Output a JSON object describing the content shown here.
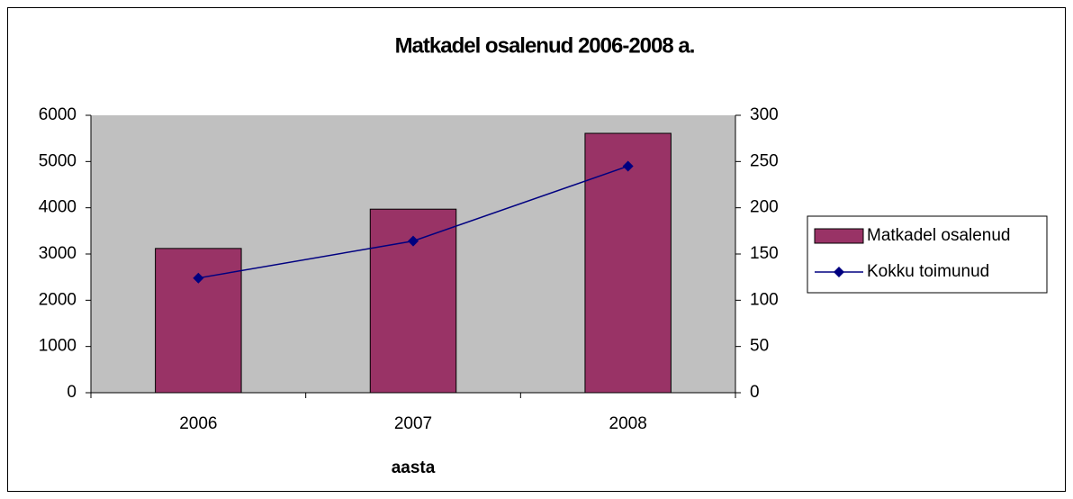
{
  "chart_data": {
    "type": "combo",
    "title": "Matkadel osalenud 2006-2008 a.",
    "x_label": "aasta",
    "categories": [
      "2006",
      "2007",
      "2008"
    ],
    "series": [
      {
        "name": "Matkadel osalenud",
        "type": "bar",
        "color": "#993366",
        "values": [
          3120,
          3970,
          5610
        ]
      },
      {
        "name": "Kokku toimunud",
        "type": "line",
        "color": "#000080",
        "axis": "y2",
        "values": [
          124,
          164,
          245
        ]
      }
    ],
    "ylim": [
      0,
      6000
    ],
    "yticks": [
      0,
      1000,
      2000,
      3000,
      4000,
      5000,
      6000
    ],
    "y2lim": [
      0,
      300
    ],
    "y2ticks": [
      0,
      50,
      100,
      150,
      200,
      250,
      300
    ],
    "plot_background": "#c0c0c0",
    "legend": "right"
  }
}
